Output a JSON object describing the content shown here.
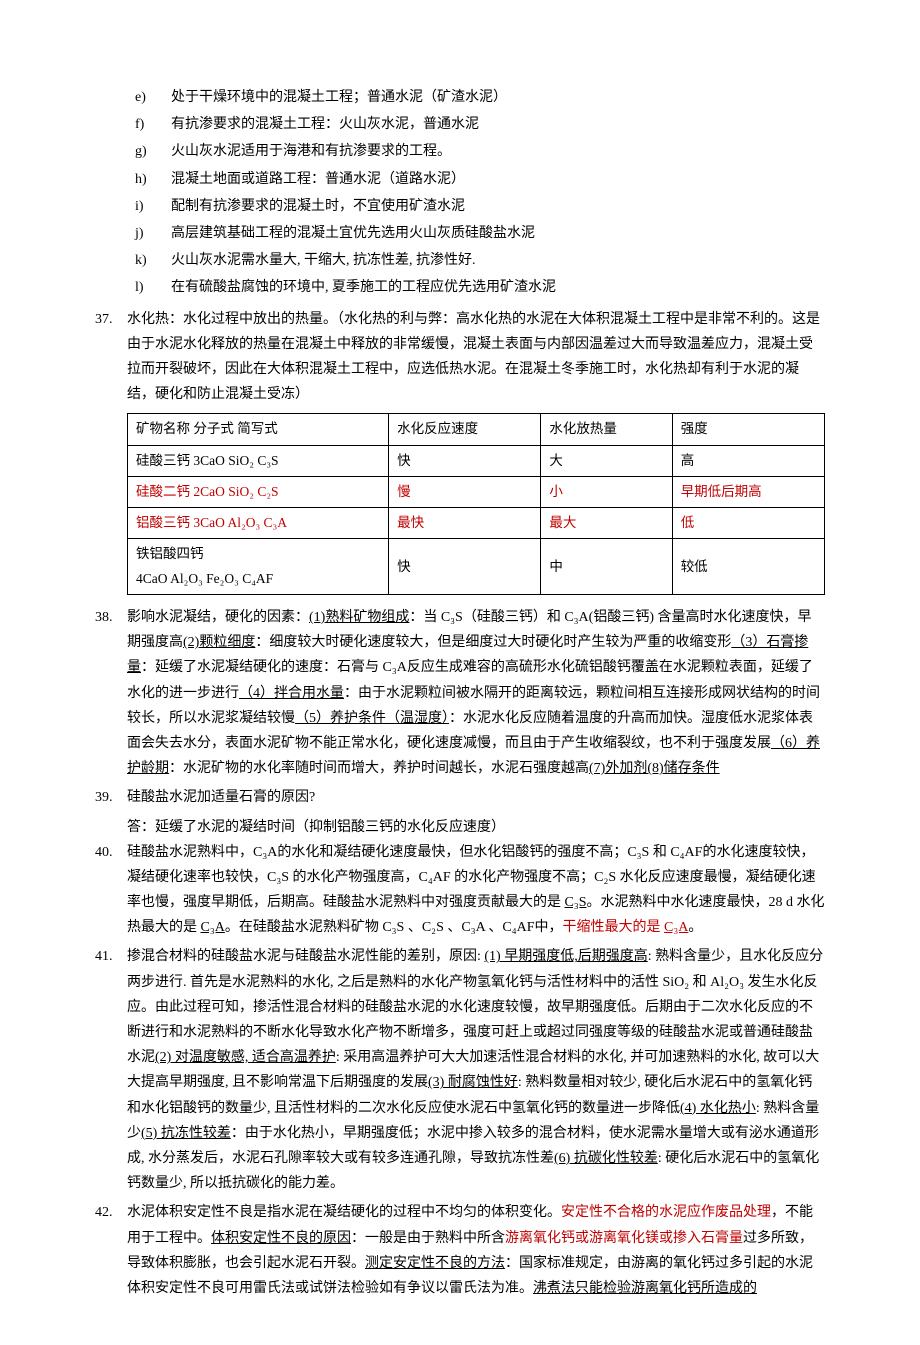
{
  "subList": {
    "items": [
      {
        "m": "e)",
        "t": "处于干燥环境中的混凝土工程；普通水泥（矿渣水泥）"
      },
      {
        "m": "f)",
        "t": "有抗渗要求的混凝土工程：火山灰水泥，普通水泥"
      },
      {
        "m": "g)",
        "t": "火山灰水泥适用于海港和有抗渗要求的工程。"
      },
      {
        "m": "h)",
        "t": "混凝土地面或道路工程：普通水泥（道路水泥）"
      },
      {
        "m": "i)",
        "t": "配制有抗渗要求的混凝土时，不宜使用矿渣水泥"
      },
      {
        "m": "j)",
        "t": "高层建筑基础工程的混凝土宜优先选用火山灰质硅酸盐水泥"
      },
      {
        "m": "k)",
        "t": "火山灰水泥需水量大, 干缩大, 抗冻性差, 抗渗性好."
      },
      {
        "m": "l)",
        "t": "在有硫酸盐腐蚀的环境中, 夏季施工的工程应优先选用矿渣水泥"
      }
    ]
  },
  "item37": {
    "num": "37.",
    "text": "水化热：水化过程中放出的热量。（水化热的利与弊：高水化热的水泥在大体积混凝土工程中是非常不利的。这是由于水泥水化释放的热量在混凝土中释放的非常缓慢，混凝土表面与内部因温差过大而导致温差应力，混凝土受拉而开裂破坏，因此在大体积混凝土工程中，应选低热水泥。在混凝土冬季施工时，水化热却有利于水泥的凝结，硬化和防止混凝土受冻）",
    "table": {
      "headers": [
        "矿物名称   分子式      简写式",
        "水化反应速度",
        "水化放热量",
        "强度"
      ],
      "rows": [
        {
          "cells": [
            "硅酸三钙 3CaO SiO₂    C₃S",
            "快",
            "大",
            "高"
          ],
          "red": false
        },
        {
          "cells": [
            "硅酸二钙 2CaO SiO₂    C₂S",
            "慢",
            "小",
            "早期低后期高"
          ],
          "red": true
        },
        {
          "cells": [
            "铝酸三钙 3CaO Al₂O₃   C₃A",
            "最快",
            "最大",
            "低"
          ],
          "red": true
        },
        {
          "cells": [
            "铁铝酸四钙\n4CaO Al₂O₃ Fe₂O₃      C₄AF",
            "快",
            "中",
            "较低"
          ],
          "red": false
        }
      ]
    }
  },
  "item38": {
    "num": "38.",
    "parts": [
      {
        "t": "影响水泥凝结，硬化的因素：",
        "ul": false,
        "red": false
      },
      {
        "t": "(1)熟料矿物组成",
        "ul": true,
        "red": false
      },
      {
        "t": "：当 C₃S（硅酸三钙）和 C₃A(铝酸三钙) 含量高时水化速度快，早期强度高",
        "ul": false,
        "red": false
      },
      {
        "t": "(2)颗粒细度",
        "ul": true,
        "red": false
      },
      {
        "t": "：细度较大时硬化速度较大，但是细度过大时硬化时产生较为严重的收缩变形",
        "ul": false,
        "red": false
      },
      {
        "t": "（3）石膏掺量",
        "ul": true,
        "red": false
      },
      {
        "t": "：延缓了水泥凝结硬化的速度：石膏与 C₃A反应生成难容的高硫形水化硫铝酸钙覆盖在水泥颗粒表面，延缓了水化的进一步进行",
        "ul": false,
        "red": false
      },
      {
        "t": "（4）拌合用水量",
        "ul": true,
        "red": false
      },
      {
        "t": "：由于水泥颗粒间被水隔开的距离较远，颗粒间相互连接形成网状结构的时间较长，所以水泥浆凝结较慢",
        "ul": false,
        "red": false
      },
      {
        "t": "（5）养护条件（温湿度）",
        "ul": true,
        "red": false
      },
      {
        "t": "：水泥水化反应随着温度的升高而加快。湿度低水泥浆体表面会失去水分，表面水泥矿物不能正常水化，硬化速度减慢，而且由于产生收缩裂纹，也不利于强度发展",
        "ul": false,
        "red": false
      },
      {
        "t": "（6）养护龄期",
        "ul": true,
        "red": false
      },
      {
        "t": "：水泥矿物的水化率随时间而增大，养护时间越长，水泥石强度越高",
        "ul": false,
        "red": false
      },
      {
        "t": "(7)外加剂(8)储存条件",
        "ul": true,
        "red": false
      }
    ]
  },
  "item39": {
    "num": "39.",
    "q": "硅酸盐水泥加适量石膏的原因?",
    "a": "答：延缓了水泥的凝结时间（抑制铝酸三钙的水化反应速度）"
  },
  "item40": {
    "num": "40.",
    "parts": [
      {
        "t": "硅酸盐水泥熟料中，C₃A的水化和凝结硬化速度最快，但水化铝酸钙的强度不高；C₃S 和 C₄AF的水化速度较快，凝结硬化速率也较快，C₃S 的水化产物强度高，C₄AF 的水化产物强度不高；C₂S 水化反应速度最慢，凝结硬化速率也慢，强度早期低，后期高。硅酸盐水泥熟料中对强度贡献最大的是 ",
        "ul": false,
        "red": false
      },
      {
        "t": "C₃S",
        "ul": true,
        "red": false
      },
      {
        "t": "。水泥熟料中水化速度最快，28 d 水化热最大的是 ",
        "ul": false,
        "red": false
      },
      {
        "t": "C₃A",
        "ul": true,
        "red": false
      },
      {
        "t": "。在硅酸盐水泥熟料矿物 C₃S 、C₂S 、C₃A 、C₄AF中，",
        "ul": false,
        "red": false
      },
      {
        "t": "干缩性最大的是 ",
        "ul": false,
        "red": true
      },
      {
        "t": "C₃A",
        "ul": true,
        "red": true
      },
      {
        "t": "。",
        "ul": false,
        "red": false
      }
    ]
  },
  "item41": {
    "num": "41.",
    "parts": [
      {
        "t": "掺混合材料的硅酸盐水泥与硅酸盐水泥性能的差别，原因: ",
        "ul": false,
        "red": false
      },
      {
        "t": "(1) 早期强度低,后期强度高",
        "ul": true,
        "red": false
      },
      {
        "t": ": 熟料含量少，且水化反应分两步进行. 首先是水泥熟料的水化, 之后是熟料的水化产物氢氧化钙与活性材料中的活性 SiO₂ 和 Al₂O₃ 发生水化反应。由此过程可知，掺活性混合材料的硅酸盐水泥的水化速度较慢，故早期强度低。后期由于二次水化反应的不断进行和水泥熟料的不断水化导致水化产物不断增多，强度可赶上或超过同强度等级的硅酸盐水泥或普通硅酸盐水泥",
        "ul": false,
        "red": false
      },
      {
        "t": "(2) 对温度敏感, 适合高温养护",
        "ul": true,
        "red": false
      },
      {
        "t": ": 采用高温养护可大大加速活性混合材料的水化, 并可加速熟料的水化, 故可以大大提高早期强度, 且不影响常温下后期强度的发展",
        "ul": false,
        "red": false
      },
      {
        "t": "(3) 耐腐蚀性好",
        "ul": true,
        "red": false
      },
      {
        "t": ": 熟料数量相对较少, 硬化后水泥石中的氢氧化钙和水化铝酸钙的数量少, 且活性材料的二次水化反应使水泥石中氢氧化钙的数量进一步降低",
        "ul": false,
        "red": false
      },
      {
        "t": "(4) 水化热小",
        "ul": true,
        "red": false
      },
      {
        "t": ": 熟料含量少",
        "ul": false,
        "red": false
      },
      {
        "t": "(5) 抗冻性较差",
        "ul": true,
        "red": false
      },
      {
        "t": "：由于水化热小，早期强度低；水泥中掺入较多的混合材料，使水泥需水量增大或有泌水通道形成, 水分蒸发后，水泥石孔隙率较大或有较多连通孔隙，导致抗冻性差",
        "ul": false,
        "red": false
      },
      {
        "t": "(6) 抗碳化性较差",
        "ul": true,
        "red": false
      },
      {
        "t": ": 硬化后水泥石中的氢氧化钙数量少, 所以抵抗碳化的能力差。",
        "ul": false,
        "red": false
      }
    ]
  },
  "item42": {
    "num": "42.",
    "parts": [
      {
        "t": "水泥体积安定性不良是指水泥在凝结硬化的过程中不均匀的体积变化。",
        "ul": false,
        "red": false
      },
      {
        "t": "安定性不合格的水泥应作废品处理",
        "ul": false,
        "red": true
      },
      {
        "t": "，不能用于工程中。",
        "ul": false,
        "red": false
      },
      {
        "t": "体积安定性不良的原因",
        "ul": true,
        "red": false
      },
      {
        "t": "：一般是由于熟料中所含",
        "ul": false,
        "red": false
      },
      {
        "t": "游离氧化钙或游离氧化镁或掺入石膏量",
        "ul": false,
        "red": true
      },
      {
        "t": "过多所致，导致体积膨胀，也会引起水泥石开裂。",
        "ul": false,
        "red": false
      },
      {
        "t": "测定安定性不良的方法",
        "ul": true,
        "red": false
      },
      {
        "t": "：国家标准规定，由游离的氧化钙过多引起的水泥体积安定性不良可用雷氏法或试饼法检验如有争议以雷氏法为准。",
        "ul": false,
        "red": false
      },
      {
        "t": "沸煮法只能检验游离氧化钙所造成的",
        "ul": true,
        "red": false
      }
    ]
  }
}
